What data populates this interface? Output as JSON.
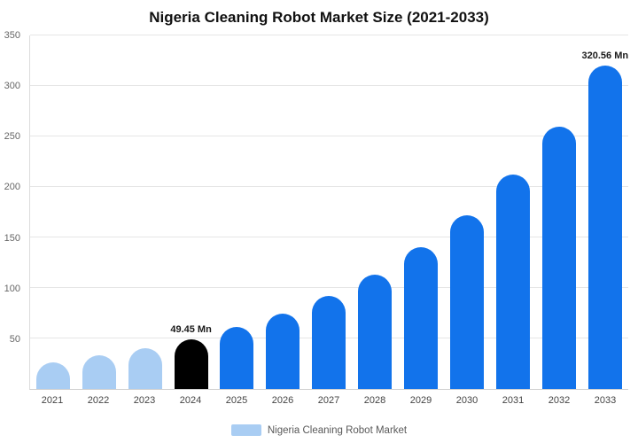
{
  "title": "Nigeria Cleaning Robot Market Size (2021-2033)",
  "legend": {
    "label": "Nigeria Cleaning Robot Market",
    "swatch_color": "#a9cdf3"
  },
  "colors": {
    "light_blue_bar": "#a9cdf3",
    "black_bar": "#000000",
    "blue_bar": "#1273eb",
    "grid_line": "#e6e6e6"
  },
  "chart_data": {
    "type": "bar",
    "title": "Nigeria Cleaning Robot Market Size (2021-2033)",
    "xlabel": "",
    "ylabel": "",
    "categories": [
      "2021",
      "2022",
      "2023",
      "2024",
      "2025",
      "2026",
      "2027",
      "2028",
      "2029",
      "2030",
      "2031",
      "2032",
      "2033"
    ],
    "values": [
      26,
      33,
      40,
      49.45,
      61,
      75,
      92,
      113,
      140,
      172,
      212,
      260,
      320.56
    ],
    "bar_colors": [
      "#a9cdf3",
      "#a9cdf3",
      "#a9cdf3",
      "#000000",
      "#1273eb",
      "#1273eb",
      "#1273eb",
      "#1273eb",
      "#1273eb",
      "#1273eb",
      "#1273eb",
      "#1273eb",
      "#1273eb"
    ],
    "annotations": [
      {
        "index": 3,
        "text": "49.45 Mn"
      },
      {
        "index": 12,
        "text": "320.56 Mn"
      }
    ],
    "ylim": [
      0,
      350
    ],
    "yticks": [
      50,
      100,
      150,
      200,
      250,
      300,
      350
    ],
    "grid": true,
    "legend_position": "bottom"
  }
}
